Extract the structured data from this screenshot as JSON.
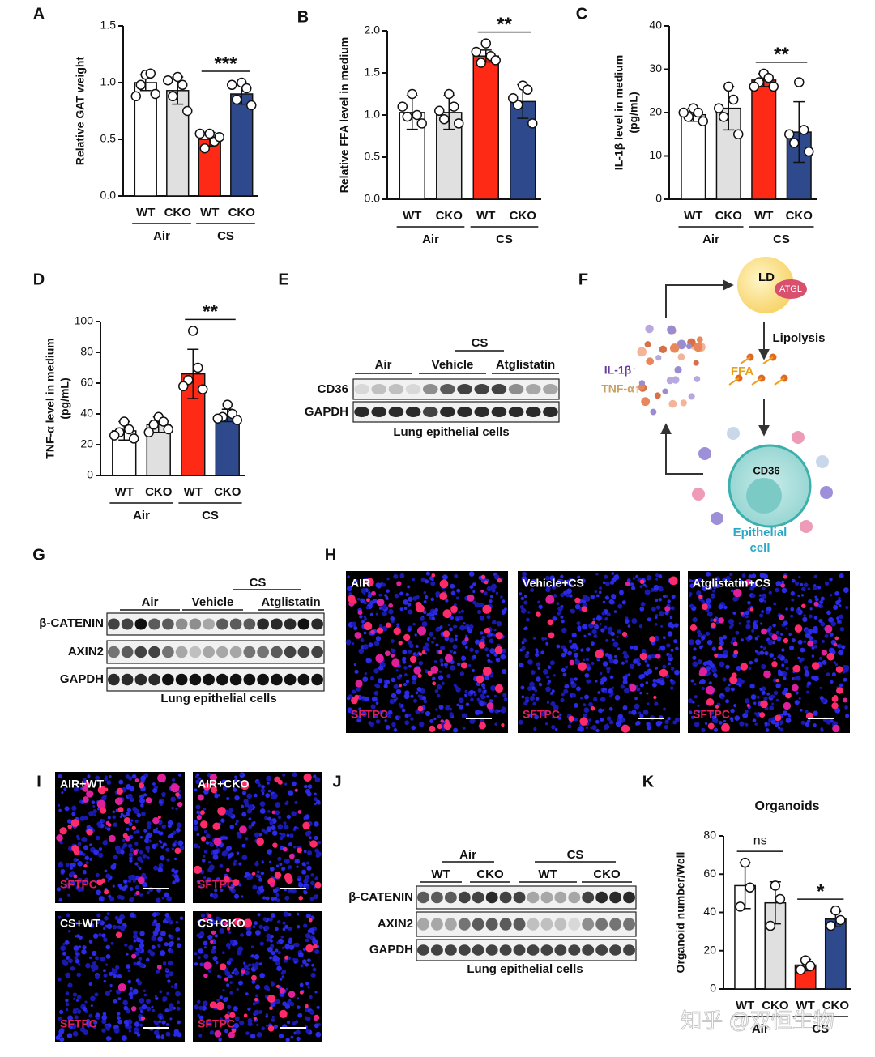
{
  "panel_labels": [
    "A",
    "B",
    "C",
    "D",
    "E",
    "F",
    "G",
    "H",
    "I",
    "J",
    "K"
  ],
  "chart_data": [
    {
      "type": "bar",
      "y_label": [
        "Relative GAT weight"
      ],
      "categories": [
        "WT",
        "CKO",
        "WT",
        "CKO"
      ],
      "groups": [
        "Air",
        "CS"
      ],
      "significance": [
        null,
        "***"
      ],
      "values": [
        1.0,
        0.93,
        0.5,
        0.9
      ],
      "errors": [
        0.07,
        0.12,
        0.06,
        0.09
      ],
      "points": [
        [
          1.07,
          1.08,
          0.98,
          0.9,
          0.88
        ],
        [
          1.05,
          0.98,
          0.88,
          0.75,
          1.02
        ],
        [
          0.55,
          0.48,
          0.42,
          0.52,
          0.55
        ],
        [
          1.0,
          0.95,
          0.85,
          0.8,
          0.98
        ]
      ],
      "colors": [
        "#ffffff",
        "#e0e0e0",
        "#ff2a16",
        "#2e4a8c"
      ],
      "ylim": [
        0,
        1.5
      ],
      "yticks": [
        {
          "value": 0,
          "label": "0.0"
        },
        0.5,
        {
          "value": 1,
          "label": "1.0"
        },
        1.5
      ]
    },
    {
      "type": "bar",
      "y_label": [
        "Relative FFA level in medium"
      ],
      "categories": [
        "WT",
        "CKO",
        "WT",
        "CKO"
      ],
      "groups": [
        "Air",
        "CS"
      ],
      "significance": [
        null,
        "**"
      ],
      "values": [
        1.03,
        1.03,
        1.7,
        1.16
      ],
      "errors": [
        0.2,
        0.2,
        0.07,
        0.2
      ],
      "points": [
        [
          1.25,
          1.0,
          0.98,
          0.9,
          1.1
        ],
        [
          1.25,
          1.1,
          0.95,
          0.9,
          1.05
        ],
        [
          1.85,
          1.7,
          1.62,
          1.65,
          1.75
        ],
        [
          1.35,
          1.3,
          1.12,
          0.9,
          1.2
        ]
      ],
      "colors": [
        "#ffffff",
        "#e0e0e0",
        "#ff2a16",
        "#2e4a8c"
      ],
      "ylim": [
        0,
        2
      ],
      "yticks": [
        {
          "value": 0,
          "label": "0.0"
        },
        0.5,
        {
          "value": 1,
          "label": "1.0"
        },
        1.5,
        {
          "value": 2,
          "label": "2.0"
        }
      ]
    },
    {
      "type": "bar",
      "y_label": [
        "IL-1β level in medium",
        "(pg/mL)"
      ],
      "categories": [
        "WT",
        "CKO",
        "WT",
        "CKO"
      ],
      "groups": [
        "Air",
        "CS"
      ],
      "significance": [
        null,
        "**"
      ],
      "values": [
        19.5,
        21,
        27.5,
        15.5
      ],
      "errors": [
        1.5,
        5,
        1.5,
        7
      ],
      "points": [
        [
          21,
          20,
          19,
          18,
          20
        ],
        [
          26,
          23,
          19,
          15,
          21
        ],
        [
          29,
          28,
          27,
          26,
          26
        ],
        [
          27,
          16,
          13,
          11,
          15
        ]
      ],
      "colors": [
        "#ffffff",
        "#e0e0e0",
        "#ff2a16",
        "#2e4a8c"
      ],
      "ylim": [
        0,
        40
      ],
      "yticks": [
        0,
        10,
        20,
        30,
        40
      ]
    },
    {
      "type": "bar",
      "y_label": [
        "TNF-α level in medium",
        "(pg/mL)"
      ],
      "categories": [
        "WT",
        "CKO",
        "WT",
        "CKO"
      ],
      "groups": [
        "Air",
        "CS"
      ],
      "significance": [
        null,
        "**"
      ],
      "values": [
        29,
        33,
        66,
        39
      ],
      "errors": [
        6,
        5,
        16,
        4
      ],
      "points": [
        [
          35,
          30,
          28,
          24,
          26
        ],
        [
          38,
          35,
          33,
          30,
          28
        ],
        [
          94,
          70,
          62,
          56,
          58
        ],
        [
          46,
          40,
          38,
          36,
          37
        ]
      ],
      "colors": [
        "#ffffff",
        "#e0e0e0",
        "#ff2a16",
        "#2e4a8c"
      ],
      "ylim": [
        0,
        100
      ],
      "yticks": [
        0,
        20,
        40,
        60,
        80,
        100
      ]
    },
    {
      "type": "bar",
      "title": "Organoids",
      "y_label": [
        "Organoid number/Well"
      ],
      "categories": [
        "WT",
        "CKO",
        "WT",
        "CKO"
      ],
      "groups": [
        "Air",
        "CS"
      ],
      "significance": [
        "ns",
        "*"
      ],
      "values": [
        54,
        45,
        12.5,
        36.5
      ],
      "errors": [
        12,
        11,
        3,
        4
      ],
      "points": [
        [
          66,
          53,
          43
        ],
        [
          54,
          47,
          33
        ],
        [
          15,
          12,
          10
        ],
        [
          41,
          36,
          33
        ]
      ],
      "colors": [
        "#ffffff",
        "#e0e0e0",
        "#ff2a16",
        "#2e4a8c"
      ],
      "ylim": [
        0,
        80
      ],
      "yticks": [
        0,
        20,
        40,
        60,
        80
      ]
    }
  ],
  "blot_e": {
    "group": "CS",
    "lanes": [
      "Air",
      "Vehicle",
      "Atglistatin"
    ],
    "rows": [
      "CD36",
      "GAPDH"
    ],
    "caption": "Lung epithelial cells"
  },
  "blot_g": {
    "group": "CS",
    "lanes": [
      "Air",
      "Vehicle",
      "Atglistatin"
    ],
    "rows": [
      "β-CATENIN",
      "AXIN2",
      "GAPDH"
    ],
    "caption": "Lung epithelial cells"
  },
  "blot_j": {
    "groups": [
      "Air",
      "CS"
    ],
    "lanes": [
      "WT",
      "CKO",
      "WT",
      "CKO"
    ],
    "rows": [
      "β-CATENIN",
      "AXIN2",
      "GAPDH"
    ],
    "caption": "Lung epithelial cells"
  },
  "images_h": {
    "titles": [
      "AIR",
      "Vehicle+CS",
      "Atglistatin+CS"
    ],
    "stain": "SFTPC"
  },
  "images_i": {
    "titles": [
      "AIR+WT",
      "AIR+CKO",
      "CS+WT",
      "CS+CKO"
    ],
    "stain": "SFTPC"
  },
  "diagram_f": {
    "ld": "LD",
    "enzyme": "ATGL",
    "step": "Lipolysis",
    "ffa": "FFA",
    "cytokines": [
      "IL-1β↑",
      "TNF-α↑"
    ],
    "receptor": "CD36",
    "cell": [
      "Epithelial",
      "cell"
    ]
  },
  "watermark": "知乎 @双恒生物"
}
